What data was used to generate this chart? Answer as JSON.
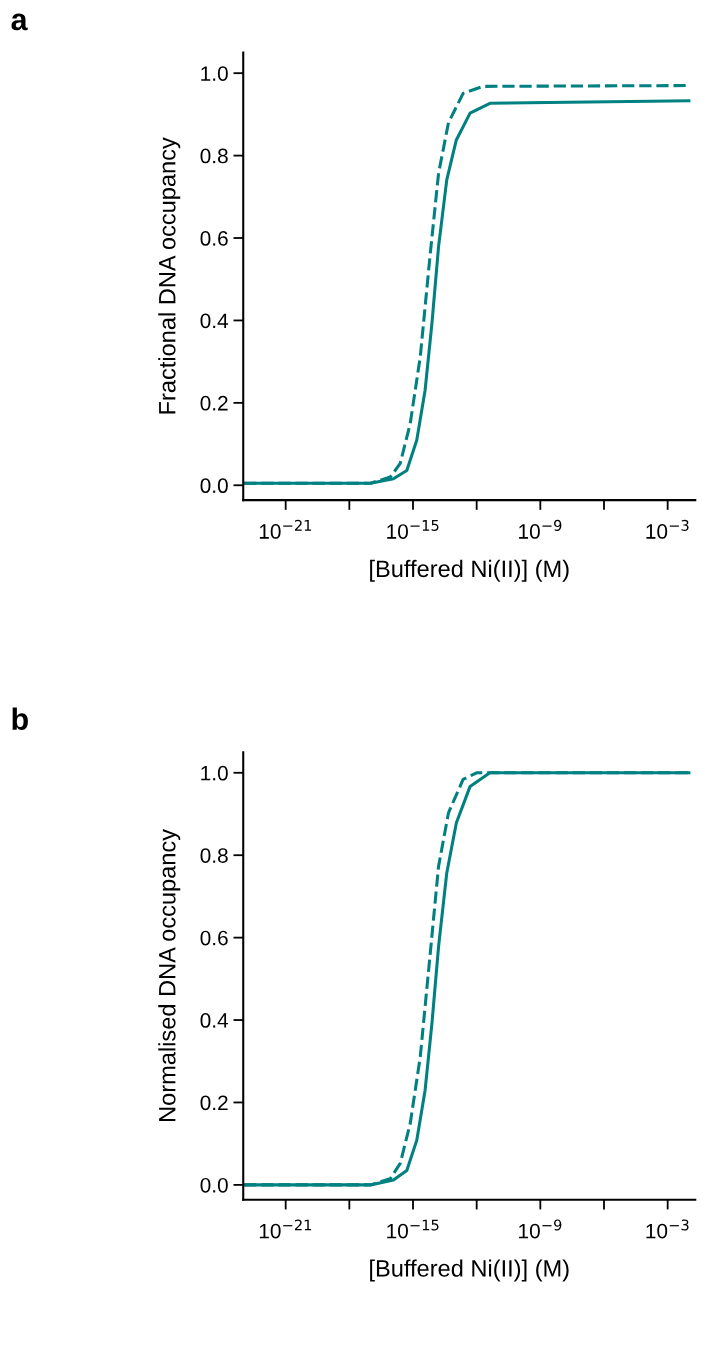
{
  "chart_data": [
    {
      "type": "line",
      "title": "a",
      "xlabel": "[Buffered Ni(II)] (M)",
      "ylabel": "Fractional DNA occupancy",
      "log": "x",
      "grid": false,
      "legend": false,
      "xlim": [
        1e-23,
        0.02
      ],
      "ylim": [
        -0.036,
        1.05
      ],
      "xticks": [
        {
          "value": 1e-21,
          "label": "10$^{−21}$"
        },
        {
          "value": 1e-18,
          "label": null
        },
        {
          "value": 1e-15,
          "label": "10$^{−15}$"
        },
        {
          "value": 1e-12,
          "label": null
        },
        {
          "value": 1e-09,
          "label": "10$^{−9}$"
        },
        {
          "value": 1e-06,
          "label": null
        },
        {
          "value": 0.001,
          "label": "10$^{−3}$"
        }
      ],
      "yticks": [
        {
          "value": 0,
          "label": "0.0"
        },
        {
          "value": 0.2,
          "label": "0.2"
        },
        {
          "value": 0.4,
          "label": "0.4"
        },
        {
          "value": 0.6,
          "label": "0.6"
        },
        {
          "value": 0.8,
          "label": "0.8"
        },
        {
          "value": 1,
          "label": "1.0"
        }
      ],
      "series": [
        {
          "color": "#008080",
          "line_style": "solid",
          "x": [
            1.1e-23,
            1e-17,
            1.2e-16,
            5.1e-16,
            1.5e-15,
            3.7e-15,
            7.8e-15,
            1.6e-14,
            3.9e-14,
            1.1e-13,
            4.9e-13,
            4.2e-12,
            0.01
          ],
          "values": [
            0.005,
            0.005,
            0.016,
            0.036,
            0.109,
            0.23,
            0.393,
            0.579,
            0.741,
            0.838,
            0.903,
            0.927,
            0.933
          ]
        },
        {
          "color": "#008080",
          "line_style": "dashed",
          "x": [
            1.1e-23,
            1e-17,
            8.5e-17,
            2.5e-16,
            7.4e-16,
            2.2e-15,
            6.3e-15,
            1.6e-14,
            4.7e-14,
            2.3e-13,
            2e-12,
            0.01
          ],
          "values": [
            0.005,
            0.005,
            0.02,
            0.053,
            0.15,
            0.312,
            0.555,
            0.757,
            0.88,
            0.951,
            0.968,
            0.97
          ]
        }
      ]
    },
    {
      "type": "line",
      "title": "b",
      "xlabel": "[Buffered Ni(II)] (M)",
      "ylabel": "Normalised DNA occupancy",
      "log": "x",
      "grid": false,
      "legend": false,
      "xlim": [
        1e-23,
        0.02
      ],
      "ylim": [
        -0.036,
        1.05
      ],
      "xticks": [
        {
          "value": 1e-21,
          "label": "10$^{−21}$"
        },
        {
          "value": 1e-18,
          "label": null
        },
        {
          "value": 1e-15,
          "label": "10$^{−15}$"
        },
        {
          "value": 1e-12,
          "label": null
        },
        {
          "value": 1e-09,
          "label": "10$^{−9}$"
        },
        {
          "value": 1e-06,
          "label": null
        },
        {
          "value": 0.001,
          "label": "10$^{−3}$"
        }
      ],
      "yticks": [
        {
          "value": 0,
          "label": "0.0"
        },
        {
          "value": 0.2,
          "label": "0.2"
        },
        {
          "value": 0.4,
          "label": "0.4"
        },
        {
          "value": 0.6,
          "label": "0.6"
        },
        {
          "value": 0.8,
          "label": "0.8"
        },
        {
          "value": 1,
          "label": "1.0"
        }
      ],
      "series": [
        {
          "color": "#008080",
          "line_style": "solid",
          "x": [
            1.1e-23,
            1e-17,
            1.2e-16,
            5.1e-16,
            1.5e-15,
            3.7e-15,
            7.8e-15,
            1.6e-14,
            3.9e-14,
            1.1e-13,
            4.9e-13,
            4.2e-12,
            0.01
          ],
          "values": [
            0,
            0,
            0.012,
            0.035,
            0.108,
            0.229,
            0.392,
            0.578,
            0.757,
            0.878,
            0.967,
            1,
            1
          ]
        },
        {
          "color": "#008080",
          "line_style": "dashed",
          "x": [
            1.1e-23,
            1e-17,
            8.5e-17,
            2.5e-16,
            7.4e-16,
            2.2e-15,
            6.3e-15,
            1.6e-14,
            4.7e-14,
            2.3e-13,
            1e-12,
            0.01
          ],
          "values": [
            0,
            0,
            0.015,
            0.052,
            0.149,
            0.311,
            0.555,
            0.773,
            0.903,
            0.984,
            1,
            1
          ]
        }
      ]
    }
  ]
}
